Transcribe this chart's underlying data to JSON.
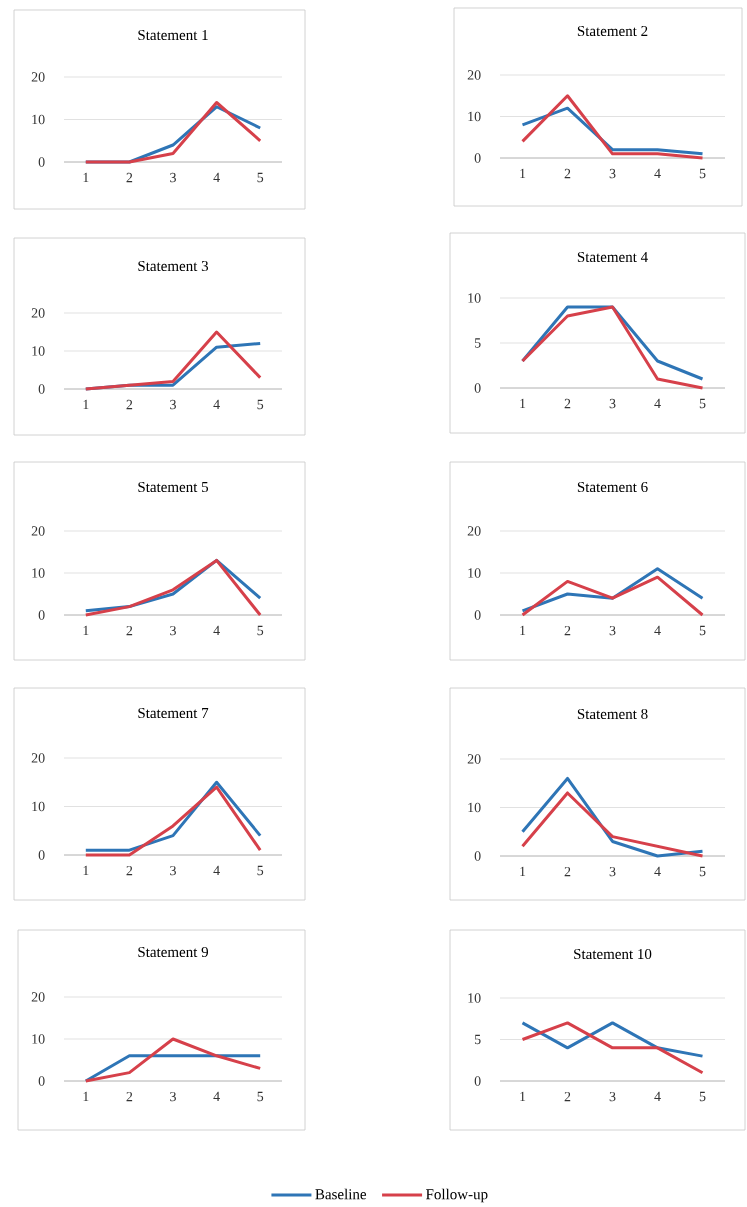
{
  "chart_data": [
    {
      "type": "line",
      "title": "Statement 1",
      "categories": [
        "1",
        "2",
        "3",
        "4",
        "5"
      ],
      "ylim": [
        0,
        20
      ],
      "yticks": [
        0,
        10,
        20
      ],
      "grid": "y",
      "series": [
        {
          "color": "#2e75b6",
          "values": [
            0,
            0,
            4,
            13,
            8
          ]
        },
        {
          "color": "#d6404a",
          "values": [
            0,
            0,
            2,
            14,
            5
          ]
        }
      ]
    },
    {
      "type": "line",
      "title": "Statement 2",
      "categories": [
        "1",
        "2",
        "3",
        "4",
        "5"
      ],
      "ylim": [
        0,
        20
      ],
      "yticks": [
        0,
        10,
        20
      ],
      "grid": "y",
      "series": [
        {
          "color": "#2e75b6",
          "values": [
            8,
            12,
            2,
            2,
            1
          ]
        },
        {
          "color": "#d6404a",
          "values": [
            4,
            15,
            1,
            1,
            0
          ]
        }
      ]
    },
    {
      "type": "line",
      "title": "Statement 3",
      "categories": [
        "1",
        "2",
        "3",
        "4",
        "5"
      ],
      "ylim": [
        0,
        20
      ],
      "yticks": [
        0,
        10,
        20
      ],
      "grid": "y",
      "series": [
        {
          "color": "#2e75b6",
          "values": [
            0,
            1,
            1,
            11,
            12
          ]
        },
        {
          "color": "#d6404a",
          "values": [
            0,
            1,
            2,
            15,
            3
          ]
        }
      ]
    },
    {
      "type": "line",
      "title": "Statement 4",
      "categories": [
        "1",
        "2",
        "3",
        "4",
        "5"
      ],
      "ylim": [
        0,
        10
      ],
      "yticks": [
        0,
        5,
        10
      ],
      "grid": "y",
      "series": [
        {
          "color": "#2e75b6",
          "values": [
            3,
            9,
            9,
            3,
            1
          ]
        },
        {
          "color": "#d6404a",
          "values": [
            3,
            8,
            9,
            1,
            0
          ]
        }
      ]
    },
    {
      "type": "line",
      "title": "Statement 5",
      "categories": [
        "1",
        "2",
        "3",
        "4",
        "5"
      ],
      "ylim": [
        0,
        20
      ],
      "yticks": [
        0,
        10,
        20
      ],
      "grid": "y",
      "series": [
        {
          "color": "#2e75b6",
          "values": [
            1,
            2,
            5,
            13,
            4
          ]
        },
        {
          "color": "#d6404a",
          "values": [
            0,
            2,
            6,
            13,
            0
          ]
        }
      ]
    },
    {
      "type": "line",
      "title": "Statement 6",
      "categories": [
        "1",
        "2",
        "3",
        "4",
        "5"
      ],
      "ylim": [
        0,
        20
      ],
      "yticks": [
        0,
        10,
        20
      ],
      "grid": "y",
      "series": [
        {
          "color": "#2e75b6",
          "values": [
            1,
            5,
            4,
            11,
            4
          ]
        },
        {
          "color": "#d6404a",
          "values": [
            0,
            8,
            4,
            9,
            0
          ]
        }
      ]
    },
    {
      "type": "line",
      "title": "Statement 7",
      "categories": [
        "1",
        "2",
        "3",
        "4",
        "5"
      ],
      "ylim": [
        0,
        20
      ],
      "yticks": [
        0,
        10,
        20
      ],
      "grid": "y",
      "series": [
        {
          "color": "#2e75b6",
          "values": [
            1,
            1,
            4,
            15,
            4
          ]
        },
        {
          "color": "#d6404a",
          "values": [
            0,
            0,
            6,
            14,
            1
          ]
        }
      ]
    },
    {
      "type": "line",
      "title": "Statement 8",
      "categories": [
        "1",
        "2",
        "3",
        "4",
        "5"
      ],
      "ylim": [
        0,
        20
      ],
      "yticks": [
        0,
        10,
        20
      ],
      "grid": "y",
      "series": [
        {
          "color": "#2e75b6",
          "values": [
            5,
            16,
            3,
            0,
            1
          ]
        },
        {
          "color": "#d6404a",
          "values": [
            2,
            13,
            4,
            2,
            0
          ]
        }
      ]
    },
    {
      "type": "line",
      "title": "Statement 9",
      "categories": [
        "1",
        "2",
        "3",
        "4",
        "5"
      ],
      "ylim": [
        0,
        20
      ],
      "yticks": [
        0,
        10,
        20
      ],
      "grid": "y",
      "series": [
        {
          "color": "#2e75b6",
          "values": [
            0,
            6,
            6,
            6,
            6
          ]
        },
        {
          "color": "#d6404a",
          "values": [
            0,
            2,
            10,
            6,
            3
          ]
        }
      ]
    },
    {
      "type": "line",
      "title": "Statement 10",
      "categories": [
        "1",
        "2",
        "3",
        "4",
        "5"
      ],
      "ylim": [
        0,
        10
      ],
      "yticks": [
        0,
        5,
        10
      ],
      "grid": "y",
      "legend": "bottom",
      "series": [
        {
          "name": "Baseline",
          "color": "#2e75b6",
          "values": [
            7,
            4,
            7,
            4,
            3
          ]
        },
        {
          "name": "Follow-up",
          "color": "#d6404a",
          "values": [
            5,
            7,
            4,
            4,
            1
          ]
        }
      ]
    }
  ]
}
